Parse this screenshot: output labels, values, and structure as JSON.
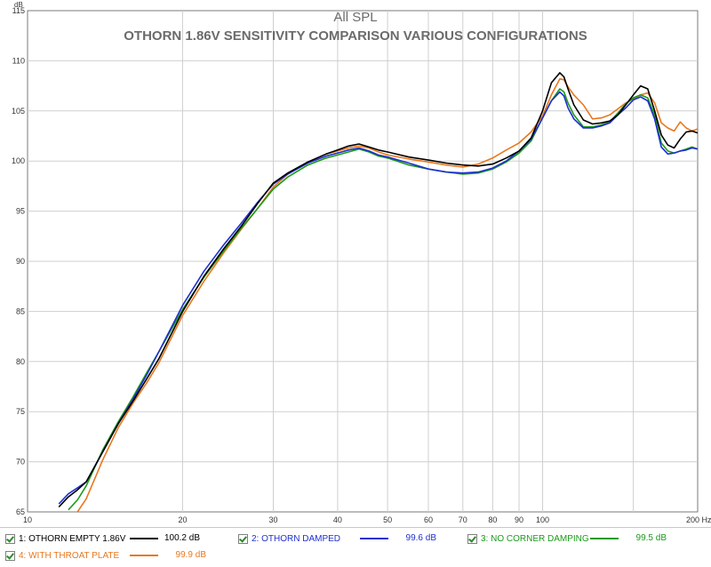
{
  "chart_data": {
    "type": "line",
    "title": "All SPL",
    "subtitle": "OTHORN 1.86V SENSITIVITY COMPARISON VARIOUS CONFIGURATIONS",
    "ylabel": "dB",
    "xunit": "200 Hz",
    "xscale": "log",
    "xlim": [
      10,
      200
    ],
    "ylim": [
      65,
      115
    ],
    "grid": true,
    "x_ticks": [
      {
        "v": 10,
        "label": "10"
      },
      {
        "v": 20,
        "label": "20"
      },
      {
        "v": 30,
        "label": "30"
      },
      {
        "v": 40,
        "label": "40"
      },
      {
        "v": 50,
        "label": "50"
      },
      {
        "v": 60,
        "label": "60"
      },
      {
        "v": 70,
        "label": "70"
      },
      {
        "v": 80,
        "label": "80"
      },
      {
        "v": 90,
        "label": "90"
      },
      {
        "v": 100,
        "label": "100"
      }
    ],
    "y_ticks": [
      65,
      70,
      75,
      80,
      85,
      90,
      95,
      100,
      105,
      110,
      115
    ],
    "legend_position": "bottom",
    "series": [
      {
        "name": "1: OTHORN EMPTY 1.86V",
        "value": "100.2 dB",
        "color": "#000000",
        "label_color": "#000000",
        "x": [
          11.5,
          12,
          12.5,
          13,
          14,
          15,
          16,
          17,
          18,
          20,
          22,
          24,
          26,
          28,
          30,
          32,
          35,
          38,
          40,
          42,
          44,
          46,
          48,
          50,
          55,
          60,
          65,
          70,
          75,
          80,
          85,
          90,
          95,
          100,
          104,
          108,
          110,
          112,
          115,
          120,
          125,
          130,
          135,
          140,
          145,
          150,
          155,
          160,
          165,
          170,
          175,
          180,
          185,
          190,
          195,
          200
        ],
        "y": [
          65.5,
          66.5,
          67.2,
          68.0,
          71.0,
          73.8,
          76.0,
          78.2,
          80.3,
          85.0,
          88.5,
          91.2,
          93.5,
          95.8,
          97.8,
          98.8,
          99.9,
          100.7,
          101.1,
          101.5,
          101.7,
          101.4,
          101.1,
          100.9,
          100.4,
          100.1,
          99.8,
          99.6,
          99.5,
          99.7,
          100.3,
          101.0,
          102.3,
          105.0,
          107.8,
          108.8,
          108.4,
          107.2,
          105.6,
          104.1,
          103.7,
          103.8,
          104.0,
          104.6,
          105.6,
          106.6,
          107.5,
          107.2,
          105.0,
          102.6,
          101.6,
          101.3,
          102.2,
          102.9,
          103.0,
          102.8
        ]
      },
      {
        "name": "2: OTHORN DAMPED",
        "value": "99.6 dB",
        "color": "#1f2fd0",
        "label_color": "#1f2fd0",
        "x": [
          11.5,
          12,
          12.5,
          13,
          14,
          15,
          16,
          17,
          18,
          20,
          22,
          24,
          26,
          28,
          30,
          32,
          35,
          38,
          40,
          42,
          44,
          46,
          48,
          50,
          55,
          60,
          65,
          70,
          75,
          80,
          85,
          90,
          95,
          100,
          104,
          108,
          110,
          112,
          115,
          120,
          125,
          130,
          135,
          140,
          145,
          150,
          155,
          160,
          165,
          170,
          175,
          180,
          185,
          190,
          195,
          200
        ],
        "y": [
          65.8,
          66.8,
          67.4,
          68.0,
          71.0,
          73.8,
          76.2,
          78.6,
          81.0,
          85.6,
          89.0,
          91.6,
          93.8,
          95.9,
          97.7,
          98.7,
          99.8,
          100.5,
          100.8,
          101.1,
          101.3,
          101.0,
          100.6,
          100.4,
          99.8,
          99.2,
          98.9,
          98.8,
          98.9,
          99.3,
          100.0,
          101.0,
          102.2,
          104.3,
          106.0,
          106.9,
          106.5,
          105.3,
          104.2,
          103.3,
          103.3,
          103.5,
          103.8,
          104.6,
          105.3,
          106.1,
          106.4,
          106.0,
          104.2,
          101.4,
          100.7,
          100.8,
          101.0,
          101.1,
          101.3,
          101.2
        ]
      },
      {
        "name": "3: NO CORNER DAMPING",
        "value": "99.5 dB",
        "color": "#1a9a1a",
        "label_color": "#1a9a1a",
        "x": [
          12,
          12.5,
          13,
          14,
          15,
          16,
          17,
          18,
          20,
          22,
          24,
          26,
          28,
          30,
          32,
          35,
          38,
          40,
          42,
          44,
          46,
          48,
          50,
          55,
          60,
          65,
          70,
          75,
          80,
          85,
          90,
          95,
          100,
          104,
          108,
          110,
          112,
          115,
          120,
          125,
          130,
          135,
          140,
          145,
          150,
          155,
          160,
          165,
          170,
          175,
          180,
          185,
          190,
          195,
          200
        ],
        "y": [
          65.2,
          66.2,
          67.6,
          71.2,
          74.0,
          76.4,
          78.8,
          81.0,
          85.2,
          88.4,
          91.0,
          93.3,
          95.3,
          97.2,
          98.4,
          99.6,
          100.3,
          100.6,
          100.9,
          101.2,
          100.9,
          100.5,
          100.3,
          99.6,
          99.2,
          98.9,
          98.7,
          98.8,
          99.2,
          99.9,
          100.8,
          102.0,
          104.3,
          106.0,
          107.2,
          106.9,
          105.8,
          104.6,
          103.4,
          103.4,
          103.6,
          103.9,
          104.8,
          105.7,
          106.3,
          106.6,
          106.3,
          104.6,
          101.8,
          101.0,
          100.8,
          101.0,
          101.2,
          101.4,
          101.2
        ]
      },
      {
        "name": "4: WITH THROAT PLATE",
        "value": "99.9 dB",
        "color": "#e8781e",
        "label_color": "#e8781e",
        "x": [
          12.5,
          13,
          14,
          15,
          16,
          17,
          18,
          20,
          22,
          24,
          26,
          28,
          30,
          32,
          35,
          38,
          40,
          42,
          44,
          46,
          48,
          50,
          55,
          60,
          65,
          70,
          75,
          80,
          85,
          90,
          95,
          100,
          104,
          108,
          110,
          112,
          115,
          120,
          125,
          130,
          135,
          140,
          145,
          150,
          155,
          160,
          165,
          170,
          175,
          180,
          185,
          190,
          195,
          200
        ],
        "y": [
          65.0,
          66.3,
          70.2,
          73.4,
          75.8,
          77.8,
          79.9,
          84.6,
          88.0,
          90.8,
          93.2,
          95.3,
          97.4,
          98.7,
          99.9,
          100.7,
          101.0,
          101.3,
          101.5,
          101.3,
          100.9,
          100.6,
          100.2,
          99.9,
          99.6,
          99.4,
          99.7,
          100.3,
          101.1,
          101.8,
          102.9,
          104.5,
          106.6,
          108.2,
          108.1,
          107.4,
          106.6,
          105.6,
          104.2,
          104.3,
          104.6,
          105.2,
          105.8,
          106.2,
          106.6,
          106.8,
          105.8,
          103.8,
          103.3,
          103.0,
          103.9,
          103.3,
          103.0,
          103.2
        ]
      }
    ]
  }
}
